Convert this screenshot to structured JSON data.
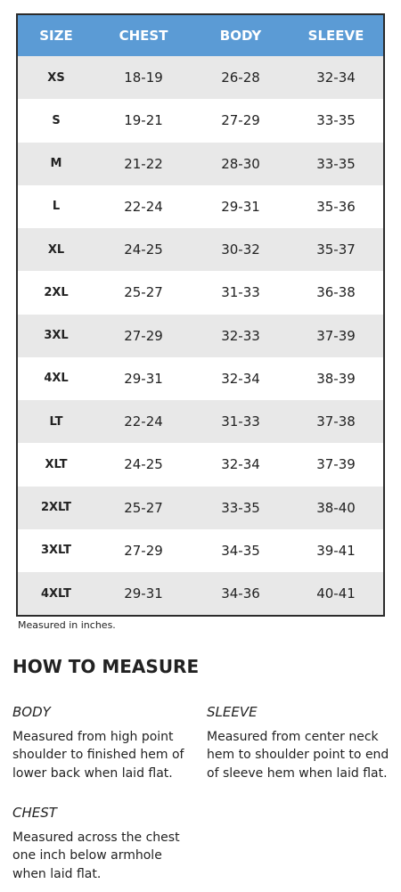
{
  "table": {
    "headers": [
      "SIZE",
      "CHEST",
      "BODY",
      "SLEEVE"
    ],
    "rows": [
      [
        "XS",
        "18-19",
        "26-28",
        "32-34"
      ],
      [
        "S",
        "19-21",
        "27-29",
        "33-35"
      ],
      [
        "M",
        "21-22",
        "28-30",
        "33-35"
      ],
      [
        "L",
        "22-24",
        "29-31",
        "35-36"
      ],
      [
        "XL",
        "24-25",
        "30-32",
        "35-37"
      ],
      [
        "2XL",
        "25-27",
        "31-33",
        "36-38"
      ],
      [
        "3XL",
        "27-29",
        "32-33",
        "37-39"
      ],
      [
        "4XL",
        "29-31",
        "32-34",
        "38-39"
      ],
      [
        "LT",
        "22-24",
        "31-33",
        "37-38"
      ],
      [
        "XLT",
        "24-25",
        "32-34",
        "37-39"
      ],
      [
        "2XLT",
        "25-27",
        "33-35",
        "38-40"
      ],
      [
        "3XLT",
        "27-29",
        "34-35",
        "39-41"
      ],
      [
        "4XLT",
        "29-31",
        "34-36",
        "40-41"
      ]
    ],
    "note": "Measured in inches."
  },
  "measure": {
    "title": "HOW TO MEASURE",
    "items": [
      {
        "title": "BODY",
        "lines": [
          "Measured from high point",
          "shoulder to finished hem of",
          "lower back when laid flat."
        ]
      },
      {
        "title": "SLEEVE",
        "lines": [
          "Measured from center neck",
          "hem to shoulder point to end",
          "of sleeve hem when laid flat."
        ]
      },
      {
        "title": "CHEST",
        "lines": [
          "Measured across the chest",
          "one inch below armhole",
          "when laid flat."
        ]
      }
    ]
  }
}
